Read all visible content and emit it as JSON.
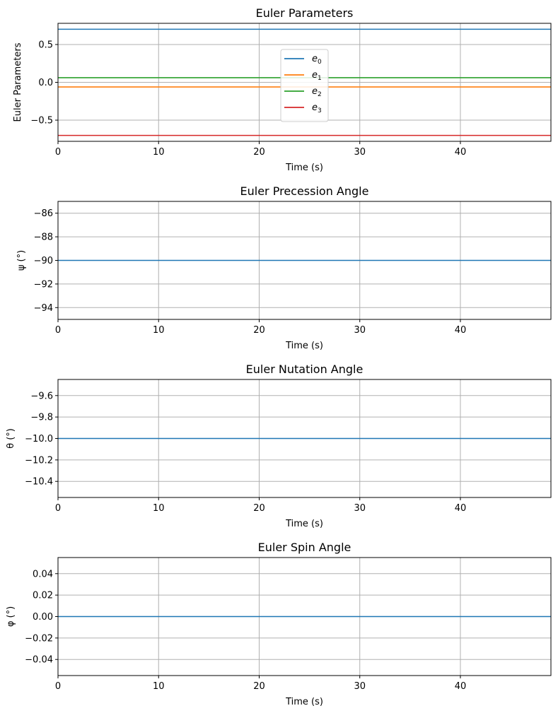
{
  "chart_data": [
    {
      "type": "line",
      "title": "Euler Parameters",
      "xlabel": "Time (s)",
      "ylabel": "Euler Parameters",
      "xlim": [
        0,
        49
      ],
      "ylim": [
        -0.78,
        0.78
      ],
      "xticks": [
        0,
        10,
        20,
        30,
        40
      ],
      "xtick_labels": [
        "0",
        "10",
        "20",
        "30",
        "40"
      ],
      "yticks": [
        0.5,
        0.0,
        -0.5
      ],
      "ytick_labels": [
        "0.5",
        "0.0",
        "−0.5"
      ],
      "grid": true,
      "legend_position": "upper-center",
      "x": [
        0,
        49
      ],
      "series": [
        {
          "name": "e",
          "sub": "0",
          "color": "#1f77b4",
          "values": [
            0.7017,
            0.7017
          ]
        },
        {
          "name": "e",
          "sub": "1",
          "color": "#ff7f0e",
          "values": [
            -0.0616,
            -0.0616
          ]
        },
        {
          "name": "e",
          "sub": "2",
          "color": "#2ca02c",
          "values": [
            0.0616,
            0.0616
          ]
        },
        {
          "name": "e",
          "sub": "3",
          "color": "#d62728",
          "values": [
            -0.7017,
            -0.7017
          ]
        }
      ]
    },
    {
      "type": "line",
      "title": "Euler Precession Angle",
      "xlabel": "Time (s)",
      "ylabel": "ψ (°)",
      "xlim": [
        0,
        49
      ],
      "ylim": [
        -95,
        -85
      ],
      "xticks": [
        0,
        10,
        20,
        30,
        40
      ],
      "xtick_labels": [
        "0",
        "10",
        "20",
        "30",
        "40"
      ],
      "yticks": [
        -86,
        -88,
        -90,
        -92,
        -94
      ],
      "ytick_labels": [
        "−86",
        "−88",
        "−90",
        "−92",
        "−94"
      ],
      "grid": true,
      "x": [
        0,
        49
      ],
      "series": [
        {
          "color": "#1f77b4",
          "values": [
            -90,
            -90
          ]
        }
      ]
    },
    {
      "type": "line",
      "title": "Euler Nutation Angle",
      "xlabel": "Time (s)",
      "ylabel": "θ (°)",
      "xlim": [
        0,
        49
      ],
      "ylim": [
        -10.55,
        -9.45
      ],
      "xticks": [
        0,
        10,
        20,
        30,
        40
      ],
      "xtick_labels": [
        "0",
        "10",
        "20",
        "30",
        "40"
      ],
      "yticks": [
        -9.6,
        -9.8,
        -10.0,
        -10.2,
        -10.4
      ],
      "ytick_labels": [
        "−9.6",
        "−9.8",
        "−10.0",
        "−10.2",
        "−10.4"
      ],
      "grid": true,
      "x": [
        0,
        49
      ],
      "series": [
        {
          "color": "#1f77b4",
          "values": [
            -10,
            -10
          ]
        }
      ]
    },
    {
      "type": "line",
      "title": "Euler Spin Angle",
      "xlabel": "Time (s)",
      "ylabel": "φ (°)",
      "xlim": [
        0,
        49
      ],
      "ylim": [
        -0.055,
        0.055
      ],
      "xticks": [
        0,
        10,
        20,
        30,
        40
      ],
      "xtick_labels": [
        "0",
        "10",
        "20",
        "30",
        "40"
      ],
      "yticks": [
        0.04,
        0.02,
        0.0,
        -0.02,
        -0.04
      ],
      "ytick_labels": [
        "0.04",
        "0.02",
        "0.00",
        "−0.02",
        "−0.04"
      ],
      "grid": true,
      "x": [
        0,
        49
      ],
      "series": [
        {
          "color": "#1f77b4",
          "values": [
            0,
            0
          ]
        }
      ]
    }
  ]
}
